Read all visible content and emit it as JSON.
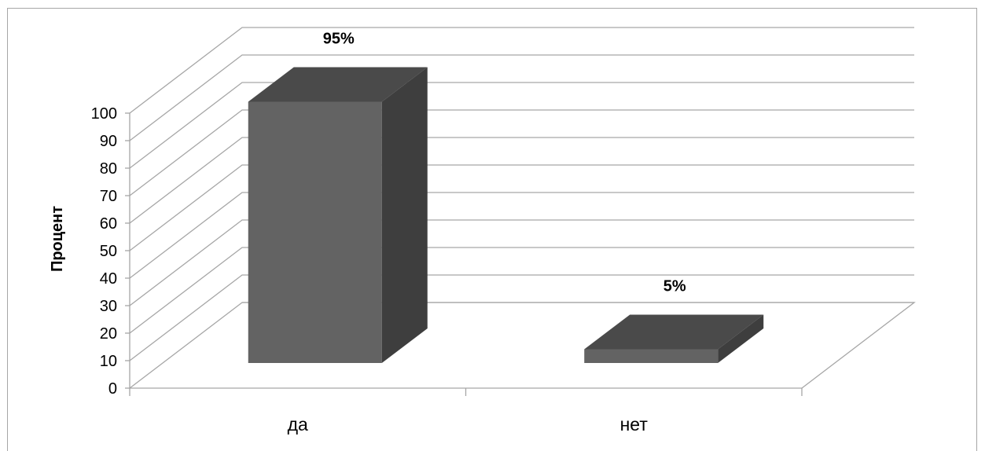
{
  "chart_data": {
    "type": "bar",
    "subtype": "3d-column",
    "categories": [
      "да",
      "нет"
    ],
    "values": [
      95,
      5
    ],
    "data_labels": [
      "95%",
      "5%"
    ],
    "title": "",
    "xlabel": "",
    "ylabel": "Процент",
    "ylim": [
      0,
      100
    ],
    "yticks": [
      0,
      10,
      20,
      30,
      40,
      50,
      60,
      70,
      80,
      90,
      100
    ],
    "grid": true,
    "legend": "none",
    "colors": {
      "bar_front": "#636363",
      "bar_top": "#4a4a4a",
      "bar_side": "#3e3e3e",
      "grid": "#a6a6a6",
      "frame": "#a6a6a6"
    }
  }
}
